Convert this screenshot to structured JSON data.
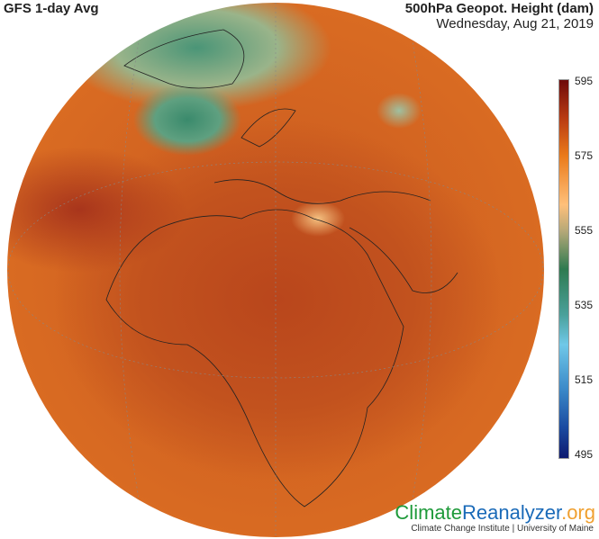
{
  "header": {
    "left_title": "GFS 1-day Avg",
    "variable": "500hPa Geopot. Height (dam)",
    "date": "Wednesday, Aug 21, 2019"
  },
  "colorbar": {
    "labels": [
      "595",
      "575",
      "555",
      "535",
      "515",
      "495"
    ],
    "min": 495,
    "max": 595,
    "colors": [
      "#6e0a0a",
      "#b83a12",
      "#ea7a1a",
      "#ffc07a",
      "#b5a878",
      "#2e7a50",
      "#4aa09a",
      "#70c8e8",
      "#3a88c8",
      "#1a4aa0",
      "#0e1a70"
    ]
  },
  "map": {
    "projection": "orthographic",
    "region": "Europe / Africa / Middle East"
  },
  "branding": {
    "climate": "Climate",
    "reanalyzer": "Reanalyzer",
    ".org": ".org",
    "institution": "Climate Change Institute | University of Maine"
  }
}
